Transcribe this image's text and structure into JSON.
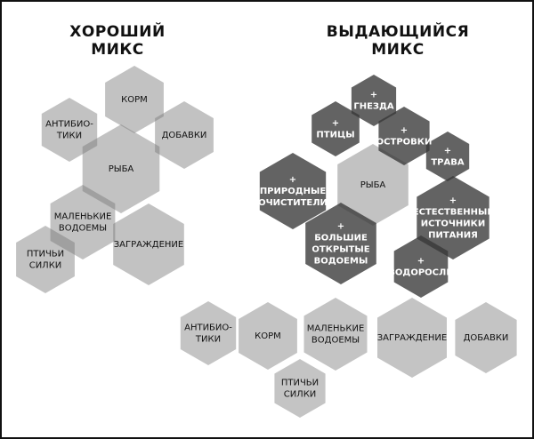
{
  "good_mix": {
    "title_line1": "ХОРОШИЙ",
    "title_line2": "МИКС",
    "items": [
      {
        "label": [
          "КОРМ"
        ]
      },
      {
        "label": [
          "АНТИБИО-",
          "ТИКИ"
        ]
      },
      {
        "label": [
          "ДОБАВКИ"
        ]
      },
      {
        "label": [
          "РЫБА"
        ]
      },
      {
        "label": [
          "МАЛЕНЬКИЕ",
          "ВОДОЕМЫ"
        ]
      },
      {
        "label": [
          "ЗАГРАЖДЕНИЕ"
        ]
      },
      {
        "label": [
          "ПТИЧЬИ",
          "СИЛКИ"
        ]
      }
    ]
  },
  "great_mix": {
    "title_line1": "ВЫДАЮЩИЙСЯ",
    "title_line2": "МИКС",
    "center": {
      "label": [
        "РЫБА"
      ]
    },
    "additions": [
      {
        "label": [
          "+",
          "ГНЕЗДА"
        ]
      },
      {
        "label": [
          "+",
          "ПТИЦЫ"
        ]
      },
      {
        "label": [
          "+",
          "ОСТРОВКИ"
        ]
      },
      {
        "label": [
          "+",
          "ТРАВА"
        ]
      },
      {
        "label": [
          "+",
          "ПРИРОДНЫЕ",
          "ОЧИСТИТЕЛИ"
        ]
      },
      {
        "label": [
          "+",
          "БОЛЬШИЕ",
          "ОТКРЫТЫЕ",
          "ВОДОЕМЫ"
        ]
      },
      {
        "label": [
          "+",
          "ЕСТЕСТВЕННЫЕ",
          "ИСТОЧНИКИ",
          "ПИТАНИЯ"
        ]
      },
      {
        "label": [
          "+",
          "ВОДОРОСЛИ"
        ]
      }
    ],
    "base_items": [
      {
        "label": [
          "АНТИБИО-",
          "ТИКИ"
        ]
      },
      {
        "label": [
          "КОРМ"
        ]
      },
      {
        "label": [
          "МАЛЕНЬКИЕ",
          "ВОДОЕМЫ"
        ]
      },
      {
        "label": [
          "ЗАГРАЖДЕНИЕ"
        ]
      },
      {
        "label": [
          "ДОБАВКИ"
        ]
      },
      {
        "label": [
          "ПТИЧЬИ",
          "СИЛКИ"
        ]
      }
    ]
  },
  "colors": {
    "light_translucent": "rgba(120,120,120,0.45)",
    "dark_translucent": "rgba(55,55,55,0.78)",
    "light_solid": "#c4c4c4",
    "dark_text": "#111111",
    "light_text": "#ffffff"
  }
}
